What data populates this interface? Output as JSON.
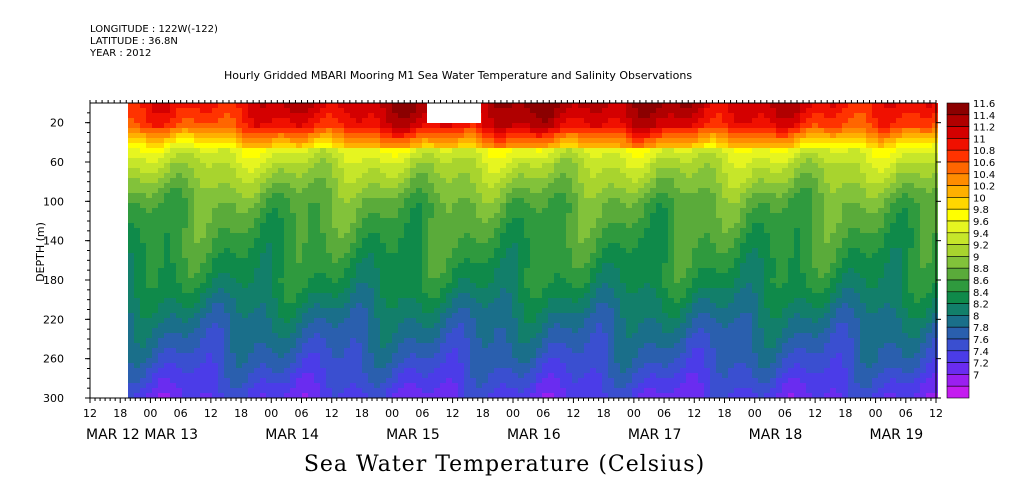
{
  "meta": {
    "longitude": "LONGITUDE : 122W(-122)",
    "latitude": "LATITUDE : 36.8N",
    "year": "YEAR : 2012"
  },
  "chart_data": {
    "type": "heatmap",
    "title": "Hourly Gridded MBARI Mooring M1 Sea Water Temperature and Salinity Observations",
    "bottom_title": "Sea Water Temperature (Celsius)",
    "ylabel": "DEPTH (m)",
    "yaxis_reversed": true,
    "ylim": [
      300,
      0
    ],
    "y_ticks": [
      20,
      60,
      100,
      140,
      180,
      220,
      260,
      300
    ],
    "x_hour_ticks": [
      "12",
      "18",
      "00",
      "06",
      "12",
      "18",
      "00",
      "06",
      "12",
      "18",
      "00",
      "06",
      "12",
      "18",
      "00",
      "06",
      "12",
      "18",
      "00",
      "06",
      "12",
      "18",
      "00",
      "06",
      "12",
      "18",
      "00",
      "06",
      "12"
    ],
    "x_date_labels": [
      "MAR 12",
      "MAR 13",
      "MAR 14",
      "MAR 15",
      "MAR 16",
      "MAR 17",
      "MAR 18",
      "MAR 19"
    ],
    "data_start_hour": 18,
    "legend_levels": [
      11.6,
      11.4,
      11.2,
      11,
      10.8,
      10.6,
      10.4,
      10.2,
      10,
      9.8,
      9.6,
      9.4,
      9.2,
      9,
      8.8,
      8.6,
      8.4,
      8.2,
      8,
      7.8,
      7.6,
      7.4,
      7.2,
      7
    ],
    "legend_colors": [
      "#8b0000",
      "#b00000",
      "#d40000",
      "#f01000",
      "#ff3300",
      "#ff6600",
      "#ff8c00",
      "#ffb000",
      "#ffd700",
      "#ffff00",
      "#e6f520",
      "#c6e62a",
      "#a8d42e",
      "#82c23a",
      "#5aab3a",
      "#2f9a3e",
      "#0f8a4a",
      "#127f6a",
      "#1a6f8a",
      "#2a5fae",
      "#3a4fd0",
      "#4b3ce8",
      "#6a2cf0",
      "#9a1ff0",
      "#c41cf0"
    ],
    "depth_profile": [
      {
        "depth": 5,
        "temp": 10.9
      },
      {
        "depth": 20,
        "temp": 10.7
      },
      {
        "depth": 40,
        "temp": 9.8
      },
      {
        "depth": 60,
        "temp": 9.4
      },
      {
        "depth": 100,
        "temp": 8.9
      },
      {
        "depth": 140,
        "temp": 8.7
      },
      {
        "depth": 180,
        "temp": 8.5
      },
      {
        "depth": 220,
        "temp": 8.1
      },
      {
        "depth": 260,
        "temp": 7.8
      },
      {
        "depth": 300,
        "temp": 7.4
      }
    ]
  }
}
